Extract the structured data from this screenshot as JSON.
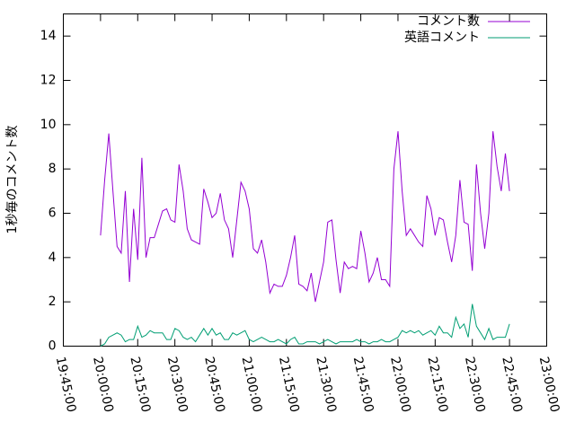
{
  "chart_data": {
    "type": "line",
    "ylabel": "1秒毎のコメント数",
    "x": [
      "20:00:00",
      "20:01:40",
      "20:03:20",
      "20:05:00",
      "20:06:40",
      "20:08:20",
      "20:10:00",
      "20:11:40",
      "20:13:20",
      "20:15:00",
      "20:16:40",
      "20:18:20",
      "20:20:00",
      "20:21:40",
      "20:23:20",
      "20:25:00",
      "20:26:40",
      "20:28:20",
      "20:30:00",
      "20:31:40",
      "20:33:20",
      "20:35:00",
      "20:36:40",
      "20:38:20",
      "20:40:00",
      "20:41:40",
      "20:43:20",
      "20:45:00",
      "20:46:40",
      "20:48:20",
      "20:50:00",
      "20:51:40",
      "20:53:20",
      "20:55:00",
      "20:56:40",
      "20:58:20",
      "21:00:00",
      "21:01:40",
      "21:03:20",
      "21:05:00",
      "21:06:40",
      "21:08:20",
      "21:10:00",
      "21:11:40",
      "21:13:20",
      "21:15:00",
      "21:16:40",
      "21:18:20",
      "21:20:00",
      "21:21:40",
      "21:23:20",
      "21:25:00",
      "21:26:40",
      "21:28:20",
      "21:30:00",
      "21:31:40",
      "21:33:20",
      "21:35:00",
      "21:36:40",
      "21:38:20",
      "21:40:00",
      "21:41:40",
      "21:43:20",
      "21:45:00",
      "21:46:40",
      "21:48:20",
      "21:50:00",
      "21:51:40",
      "21:53:20",
      "21:55:00",
      "21:56:40",
      "21:58:20",
      "22:00:00",
      "22:01:40",
      "22:03:20",
      "22:05:00",
      "22:06:40",
      "22:08:20",
      "22:10:00",
      "22:11:40",
      "22:13:20",
      "22:15:00",
      "22:16:40",
      "22:18:20",
      "22:20:00",
      "22:21:40",
      "22:23:20",
      "22:25:00",
      "22:26:40",
      "22:28:20",
      "22:30:00",
      "22:31:40",
      "22:33:20",
      "22:35:00",
      "22:36:40",
      "22:38:20",
      "22:40:00",
      "22:41:40",
      "22:43:20",
      "22:45:00"
    ],
    "series": [
      {
        "name": "コメント数",
        "color": "#9400d3",
        "values": [
          5.0,
          7.5,
          9.6,
          7.0,
          4.5,
          4.2,
          7.0,
          2.9,
          6.2,
          3.9,
          8.5,
          4.0,
          4.9,
          4.9,
          5.5,
          6.1,
          6.2,
          5.7,
          5.6,
          8.2,
          7.0,
          5.3,
          4.8,
          4.7,
          4.6,
          7.1,
          6.5,
          5.8,
          6.0,
          6.9,
          5.7,
          5.3,
          4.0,
          5.7,
          7.4,
          7.0,
          6.2,
          4.4,
          4.2,
          4.8,
          3.8,
          2.4,
          2.8,
          2.7,
          2.7,
          3.2,
          4.0,
          5.0,
          2.8,
          2.7,
          2.5,
          3.3,
          2.0,
          2.9,
          3.8,
          5.6,
          5.7,
          3.9,
          2.4,
          3.8,
          3.5,
          3.6,
          3.5,
          5.2,
          4.2,
          2.9,
          3.3,
          4.0,
          3.0,
          3.0,
          2.7,
          8.0,
          9.7,
          7.0,
          5.0,
          5.3,
          5.0,
          4.7,
          4.5,
          6.8,
          6.2,
          5.0,
          5.8,
          5.7,
          4.7,
          3.8,
          5.0,
          7.5,
          5.6,
          5.5,
          3.4,
          8.2,
          6.0,
          4.4,
          6.0,
          9.7,
          8.1,
          7.0,
          8.7,
          7.0
        ]
      },
      {
        "name": "英語コメント",
        "color": "#009e73",
        "values": [
          0.0,
          0.1,
          0.4,
          0.5,
          0.6,
          0.5,
          0.2,
          0.3,
          0.3,
          0.9,
          0.4,
          0.5,
          0.7,
          0.6,
          0.6,
          0.6,
          0.3,
          0.3,
          0.8,
          0.7,
          0.4,
          0.3,
          0.4,
          0.2,
          0.5,
          0.8,
          0.5,
          0.8,
          0.5,
          0.6,
          0.3,
          0.3,
          0.6,
          0.5,
          0.6,
          0.7,
          0.3,
          0.2,
          0.3,
          0.4,
          0.3,
          0.2,
          0.2,
          0.3,
          0.2,
          0.1,
          0.3,
          0.4,
          0.1,
          0.1,
          0.2,
          0.2,
          0.2,
          0.1,
          0.2,
          0.3,
          0.2,
          0.1,
          0.2,
          0.2,
          0.2,
          0.2,
          0.3,
          0.2,
          0.2,
          0.1,
          0.2,
          0.2,
          0.3,
          0.2,
          0.2,
          0.3,
          0.4,
          0.7,
          0.6,
          0.7,
          0.6,
          0.7,
          0.5,
          0.6,
          0.7,
          0.5,
          0.9,
          0.6,
          0.6,
          0.4,
          1.3,
          0.8,
          1.0,
          0.4,
          1.9,
          0.9,
          0.6,
          0.3,
          0.8,
          0.3,
          0.4,
          0.4,
          0.4,
          1.0
        ]
      }
    ],
    "xlim": [
      "19:45:00",
      "23:00:00"
    ],
    "xticks": [
      "19:45:00",
      "20:00:00",
      "20:15:00",
      "20:30:00",
      "20:45:00",
      "21:00:00",
      "21:15:00",
      "21:30:00",
      "21:45:00",
      "22:00:00",
      "22:15:00",
      "22:30:00",
      "22:45:00",
      "23:00:00"
    ],
    "ylim": [
      0,
      15
    ],
    "yticks": [
      0,
      2,
      4,
      6,
      8,
      10,
      12,
      14
    ],
    "legend": "top-right"
  }
}
